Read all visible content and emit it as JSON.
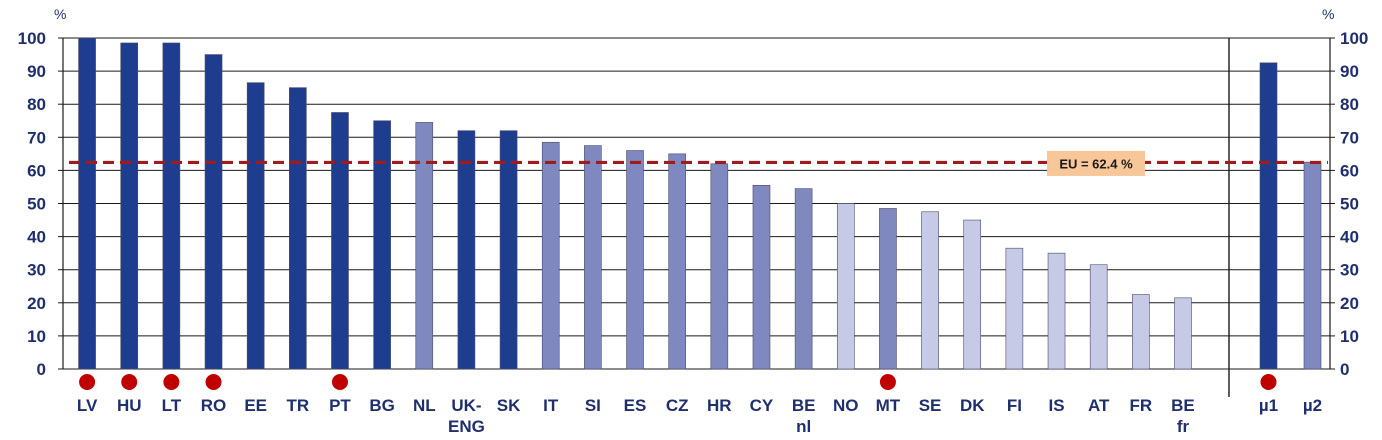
{
  "chart_data": {
    "type": "bar",
    "ylim": [
      0,
      100
    ],
    "yticks": [
      0,
      10,
      20,
      30,
      40,
      50,
      60,
      70,
      80,
      90,
      100
    ],
    "y_unit_left": "%",
    "y_unit_right": "%",
    "grid": true,
    "categories": [
      {
        "label": [
          "LV"
        ],
        "value": 100,
        "shade": "dark",
        "marker": true
      },
      {
        "label": [
          "HU"
        ],
        "value": 98.5,
        "shade": "dark",
        "marker": true
      },
      {
        "label": [
          "LT"
        ],
        "value": 98.5,
        "shade": "dark",
        "marker": true
      },
      {
        "label": [
          "RO"
        ],
        "value": 95,
        "shade": "dark",
        "marker": true
      },
      {
        "label": [
          "EE"
        ],
        "value": 86.5,
        "shade": "dark",
        "marker": false
      },
      {
        "label": [
          "TR"
        ],
        "value": 85,
        "shade": "dark",
        "marker": false
      },
      {
        "label": [
          "PT"
        ],
        "value": 77.5,
        "shade": "dark",
        "marker": true
      },
      {
        "label": [
          "BG"
        ],
        "value": 75,
        "shade": "dark",
        "marker": false
      },
      {
        "label": [
          "NL"
        ],
        "value": 74.5,
        "shade": "medium",
        "marker": false
      },
      {
        "label": [
          "UK-",
          "ENG"
        ],
        "value": 72,
        "shade": "dark",
        "marker": false
      },
      {
        "label": [
          "SK"
        ],
        "value": 72,
        "shade": "dark",
        "marker": false
      },
      {
        "label": [
          "IT"
        ],
        "value": 68.5,
        "shade": "medium",
        "marker": false
      },
      {
        "label": [
          "SI"
        ],
        "value": 67.5,
        "shade": "medium",
        "marker": false
      },
      {
        "label": [
          "ES"
        ],
        "value": 66,
        "shade": "medium",
        "marker": false
      },
      {
        "label": [
          "CZ"
        ],
        "value": 65,
        "shade": "medium",
        "marker": false
      },
      {
        "label": [
          "HR"
        ],
        "value": 62,
        "shade": "medium",
        "marker": false
      },
      {
        "label": [
          "CY"
        ],
        "value": 55.5,
        "shade": "medium",
        "marker": false
      },
      {
        "label": [
          "BE",
          "nl"
        ],
        "value": 54.5,
        "shade": "medium",
        "marker": false
      },
      {
        "label": [
          "NO"
        ],
        "value": 50,
        "shade": "light",
        "marker": false
      },
      {
        "label": [
          "MT"
        ],
        "value": 48.5,
        "shade": "medium",
        "marker": true
      },
      {
        "label": [
          "SE"
        ],
        "value": 47.5,
        "shade": "light",
        "marker": false
      },
      {
        "label": [
          "DK"
        ],
        "value": 45,
        "shade": "light",
        "marker": false
      },
      {
        "label": [
          "FI"
        ],
        "value": 36.5,
        "shade": "light",
        "marker": false
      },
      {
        "label": [
          "IS"
        ],
        "value": 35,
        "shade": "light",
        "marker": false
      },
      {
        "label": [
          "AT"
        ],
        "value": 31.5,
        "shade": "light",
        "marker": false
      },
      {
        "label": [
          "FR"
        ],
        "value": 22.5,
        "shade": "light",
        "marker": false
      },
      {
        "label": [
          "BE",
          "fr"
        ],
        "value": 21.5,
        "shade": "light",
        "marker": false
      }
    ],
    "summary": [
      {
        "label": [
          "µ1"
        ],
        "value": 92.5,
        "shade": "dark",
        "marker": true
      },
      {
        "label": [
          "µ2"
        ],
        "value": 62.5,
        "shade": "medium",
        "marker": false
      }
    ],
    "reference_line": {
      "value": 62.4,
      "label": "EU = 62.4 %"
    },
    "colors": {
      "dark": "#1f3d8f",
      "medium": "#8088c0",
      "light": "#c6cae6",
      "marker": "#c00000",
      "reference": "#a01c1c",
      "reference_label_bg": "#f7c79a",
      "axis": "#1f2f6e"
    }
  }
}
